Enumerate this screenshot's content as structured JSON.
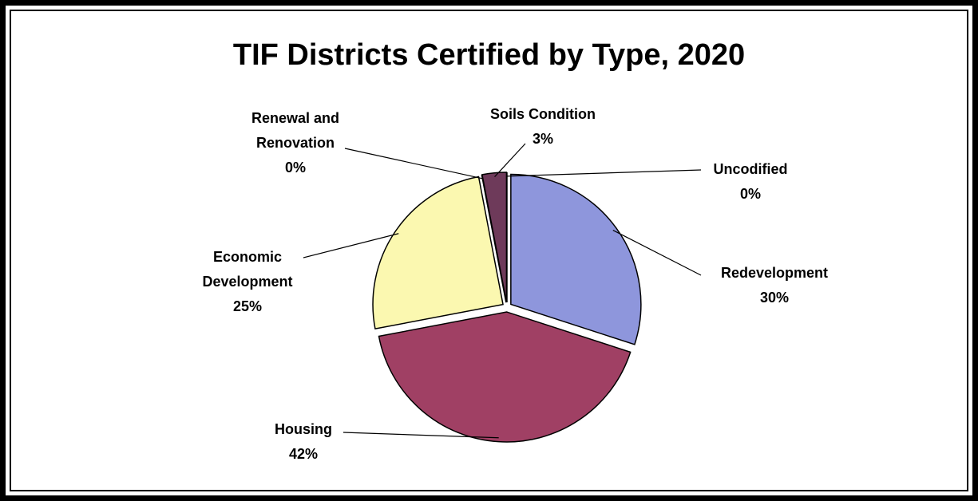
{
  "chart_data": {
    "type": "pie",
    "title": "TIF Districts Certified by Type, 2020",
    "categories": [
      "Redevelopment",
      "Housing",
      "Economic Development",
      "Renewal and Renovation",
      "Soils Condition",
      "Uncodified"
    ],
    "values": [
      30,
      42,
      25,
      0,
      3,
      0
    ],
    "value_labels": [
      "30%",
      "42%",
      "25%",
      "0%",
      "3%",
      "0%"
    ],
    "colors": [
      "#8e96dc",
      "#a04064",
      "#fbf8b0",
      "#f4f4f4",
      "#6e3a5a",
      "#c8e8f0"
    ]
  }
}
